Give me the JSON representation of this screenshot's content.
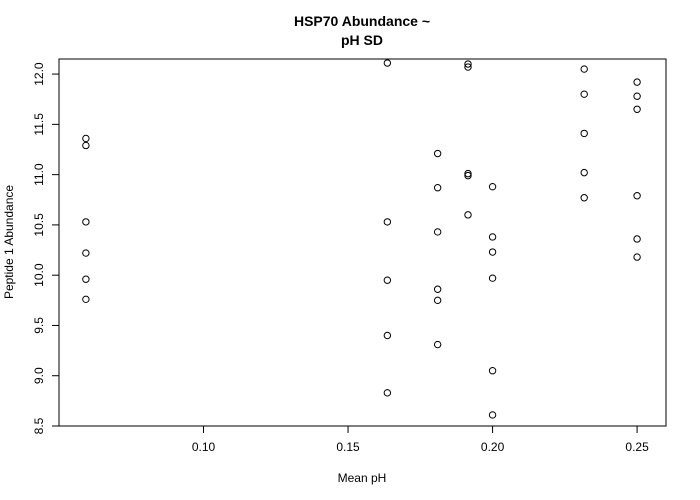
{
  "chart_data": {
    "type": "scatter",
    "title_lines": [
      "HSP70 Abundance ~",
      "pH SD"
    ],
    "xlabel": "Mean pH",
    "ylabel": "Peptide 1 Abundance",
    "xlim": [
      0.05,
      0.26
    ],
    "ylim": [
      8.5,
      12.15
    ],
    "x_ticks": [
      0.1,
      0.15,
      0.2,
      0.25
    ],
    "x_tick_labels": [
      "0.10",
      "0.15",
      "0.20",
      "0.25"
    ],
    "y_ticks": [
      8.5,
      9.0,
      9.5,
      10.0,
      10.5,
      11.0,
      11.5,
      12.0
    ],
    "y_tick_labels": [
      "8.5",
      "9.0",
      "9.5",
      "10.0",
      "10.5",
      "11.0",
      "11.5",
      "12.0"
    ],
    "grid": false,
    "legend": "none",
    "marker": "open-circle",
    "points": [
      {
        "x": 0.0593,
        "y": 11.36
      },
      {
        "x": 0.0593,
        "y": 11.29
      },
      {
        "x": 0.0593,
        "y": 10.53
      },
      {
        "x": 0.0593,
        "y": 10.22
      },
      {
        "x": 0.0593,
        "y": 9.96
      },
      {
        "x": 0.0593,
        "y": 9.76
      },
      {
        "x": 0.1636,
        "y": 12.11
      },
      {
        "x": 0.1636,
        "y": 10.53
      },
      {
        "x": 0.1636,
        "y": 9.95
      },
      {
        "x": 0.1636,
        "y": 9.4
      },
      {
        "x": 0.1636,
        "y": 8.83
      },
      {
        "x": 0.181,
        "y": 11.21
      },
      {
        "x": 0.181,
        "y": 10.87
      },
      {
        "x": 0.181,
        "y": 10.43
      },
      {
        "x": 0.181,
        "y": 9.86
      },
      {
        "x": 0.181,
        "y": 9.75
      },
      {
        "x": 0.181,
        "y": 9.31
      },
      {
        "x": 0.1915,
        "y": 12.1
      },
      {
        "x": 0.1915,
        "y": 12.07
      },
      {
        "x": 0.1915,
        "y": 11.01
      },
      {
        "x": 0.1915,
        "y": 10.99
      },
      {
        "x": 0.1915,
        "y": 10.6
      },
      {
        "x": 0.2,
        "y": 10.88
      },
      {
        "x": 0.2,
        "y": 10.38
      },
      {
        "x": 0.2,
        "y": 10.23
      },
      {
        "x": 0.2,
        "y": 9.97
      },
      {
        "x": 0.2,
        "y": 9.05
      },
      {
        "x": 0.2,
        "y": 8.61
      },
      {
        "x": 0.2317,
        "y": 12.05
      },
      {
        "x": 0.2317,
        "y": 11.8
      },
      {
        "x": 0.2317,
        "y": 11.41
      },
      {
        "x": 0.2317,
        "y": 11.02
      },
      {
        "x": 0.2317,
        "y": 10.77
      },
      {
        "x": 0.25,
        "y": 11.92
      },
      {
        "x": 0.25,
        "y": 11.78
      },
      {
        "x": 0.25,
        "y": 11.65
      },
      {
        "x": 0.25,
        "y": 10.79
      },
      {
        "x": 0.25,
        "y": 10.36
      },
      {
        "x": 0.25,
        "y": 10.18
      }
    ]
  }
}
